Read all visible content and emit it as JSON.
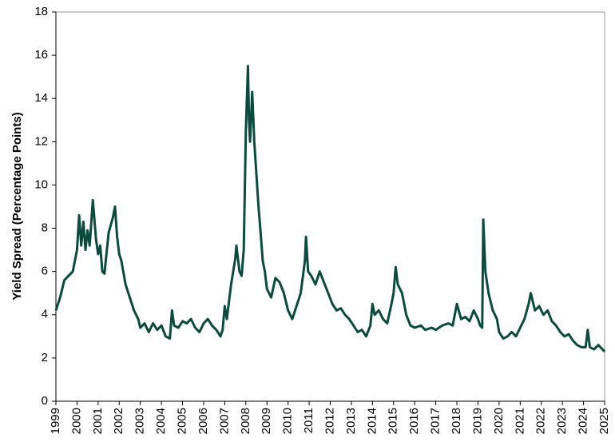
{
  "chart_data": {
    "type": "line",
    "y_label": "Yield Spread (Percentage Points)",
    "xlim": [
      1999,
      2025
    ],
    "xticks": [
      1999,
      2000,
      2001,
      2002,
      2003,
      2004,
      2005,
      2006,
      2007,
      2008,
      2009,
      2010,
      2011,
      2012,
      2013,
      2014,
      2015,
      2016,
      2017,
      2018,
      2019,
      2020,
      2021,
      2022,
      2023,
      2024,
      2025
    ],
    "ylim": [
      0,
      18
    ],
    "yticks": [
      0,
      2,
      4,
      6,
      8,
      10,
      12,
      14,
      16,
      18
    ],
    "grid": false,
    "series": [
      {
        "color": "#0b4a3c",
        "x": [
          1999.0,
          1999.2,
          1999.4,
          1999.6,
          1999.8,
          2000.0,
          2000.1,
          2000.2,
          2000.3,
          2000.4,
          2000.5,
          2000.6,
          2000.75,
          2000.9,
          2001.0,
          2001.1,
          2001.2,
          2001.3,
          2001.5,
          2001.7,
          2001.8,
          2001.9,
          2002.0,
          2002.1,
          2002.3,
          2002.5,
          2002.7,
          2002.9,
          2003.0,
          2003.2,
          2003.4,
          2003.6,
          2003.8,
          2004.0,
          2004.2,
          2004.4,
          2004.5,
          2004.6,
          2004.8,
          2005.0,
          2005.2,
          2005.4,
          2005.6,
          2005.8,
          2006.0,
          2006.2,
          2006.4,
          2006.6,
          2006.8,
          2006.9,
          2007.0,
          2007.1,
          2007.2,
          2007.3,
          2007.5,
          2007.55,
          2007.7,
          2007.8,
          2007.9,
          2008.0,
          2008.1,
          2008.15,
          2008.2,
          2008.3,
          2008.4,
          2008.5,
          2008.6,
          2008.7,
          2008.8,
          2008.9,
          2009.0,
          2009.2,
          2009.4,
          2009.6,
          2009.8,
          2010.0,
          2010.2,
          2010.4,
          2010.6,
          2010.8,
          2010.85,
          2010.95,
          2011.1,
          2011.3,
          2011.5,
          2011.7,
          2011.9,
          2012.1,
          2012.3,
          2012.5,
          2012.7,
          2012.9,
          2013.1,
          2013.3,
          2013.5,
          2013.7,
          2013.9,
          2014.0,
          2014.1,
          2014.3,
          2014.5,
          2014.7,
          2014.9,
          2015.0,
          2015.1,
          2015.2,
          2015.4,
          2015.6,
          2015.8,
          2016.0,
          2016.3,
          2016.5,
          2016.8,
          2017.0,
          2017.3,
          2017.6,
          2017.8,
          2018.0,
          2018.2,
          2018.4,
          2018.6,
          2018.8,
          2019.0,
          2019.1,
          2019.2,
          2019.25,
          2019.35,
          2019.5,
          2019.7,
          2019.9,
          2020.0,
          2020.2,
          2020.4,
          2020.6,
          2020.8,
          2021.0,
          2021.2,
          2021.4,
          2021.5,
          2021.7,
          2021.9,
          2022.1,
          2022.3,
          2022.5,
          2022.7,
          2022.9,
          2023.1,
          2023.3,
          2023.5,
          2023.7,
          2023.9,
          2024.1,
          2024.2,
          2024.3,
          2024.5,
          2024.7,
          2024.9,
          2025.0
        ],
        "values": [
          4.2,
          4.8,
          5.6,
          5.8,
          6.0,
          7.0,
          8.6,
          7.2,
          8.3,
          7.0,
          7.9,
          7.2,
          9.3,
          7.5,
          6.8,
          7.2,
          6.0,
          5.9,
          7.8,
          8.5,
          9.0,
          7.6,
          6.8,
          6.5,
          5.4,
          4.8,
          4.2,
          3.8,
          3.4,
          3.6,
          3.2,
          3.6,
          3.3,
          3.5,
          3.0,
          2.9,
          4.2,
          3.5,
          3.4,
          3.7,
          3.6,
          3.8,
          3.4,
          3.2,
          3.6,
          3.8,
          3.5,
          3.3,
          3.0,
          3.3,
          4.4,
          3.8,
          4.6,
          5.4,
          6.6,
          7.2,
          6.0,
          5.8,
          7.0,
          12.5,
          15.5,
          13.0,
          12.0,
          14.3,
          12.0,
          10.5,
          9.0,
          7.8,
          6.5,
          6.0,
          5.2,
          4.8,
          5.7,
          5.5,
          5.0,
          4.2,
          3.8,
          4.4,
          5.0,
          6.5,
          7.6,
          6.0,
          5.8,
          5.4,
          6.0,
          5.5,
          5.0,
          4.5,
          4.2,
          4.3,
          4.0,
          3.8,
          3.5,
          3.2,
          3.3,
          3.0,
          3.5,
          4.5,
          4.0,
          4.2,
          3.8,
          3.6,
          4.5,
          5.0,
          6.2,
          5.4,
          5.0,
          4.0,
          3.5,
          3.4,
          3.5,
          3.3,
          3.4,
          3.3,
          3.5,
          3.6,
          3.5,
          4.5,
          3.8,
          3.9,
          3.7,
          4.2,
          3.8,
          3.5,
          3.4,
          8.4,
          6.0,
          5.0,
          4.2,
          3.8,
          3.2,
          2.9,
          3.0,
          3.2,
          3.0,
          3.4,
          3.8,
          4.5,
          5.0,
          4.2,
          4.4,
          4.0,
          4.2,
          3.7,
          3.5,
          3.2,
          3.0,
          3.1,
          2.8,
          2.6,
          2.5,
          2.5,
          3.3,
          2.5,
          2.4,
          2.6,
          2.4,
          2.3
        ]
      }
    ]
  }
}
